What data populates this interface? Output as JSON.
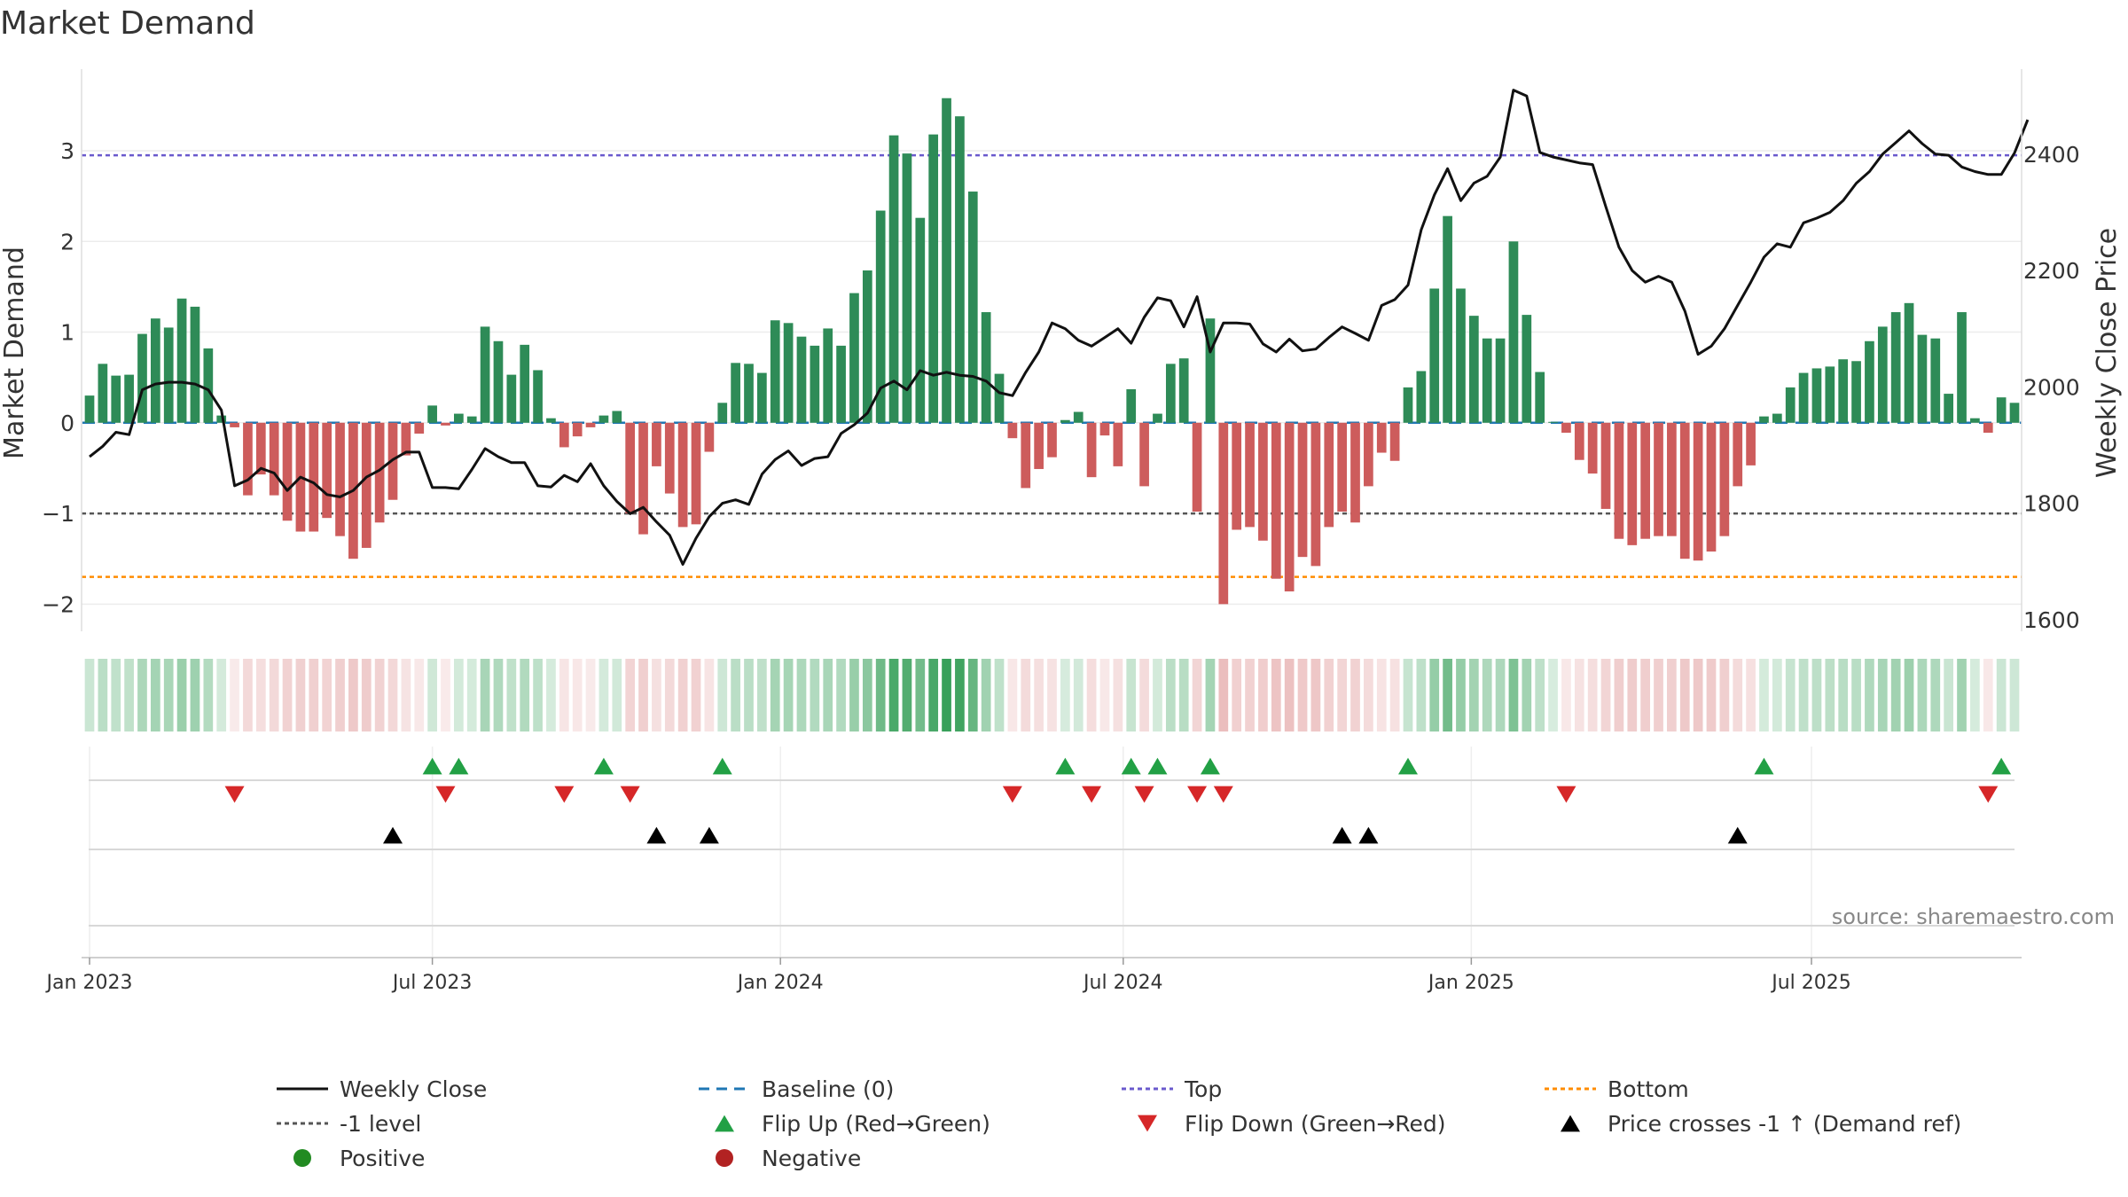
{
  "chart_data": {
    "type": "bar",
    "title": "Market Demand",
    "ylabel_left": "Market Demand",
    "ylabel_right": "Weekly Close Price",
    "source": "source: sharemaestro.com",
    "ylim_left": [
      -2.3,
      3.9
    ],
    "yticks_left": [
      {
        "v": 3,
        "label": "3"
      },
      {
        "v": 2,
        "label": "2"
      },
      {
        "v": 1,
        "label": "1"
      },
      {
        "v": 0,
        "label": "0"
      },
      {
        "v": -1,
        "label": "−1"
      },
      {
        "v": -2,
        "label": "−2"
      }
    ],
    "ylim_right": [
      1580,
      2546
    ],
    "yticks_right": [
      {
        "v": 2400,
        "label": "2400"
      },
      {
        "v": 2200,
        "label": "2200"
      },
      {
        "v": 2000,
        "label": "2000"
      },
      {
        "v": 1800,
        "label": "1800"
      },
      {
        "v": 1600,
        "label": "1600"
      }
    ],
    "xticks": [
      {
        "week": 0,
        "label": "Jan 2023"
      },
      {
        "week": 26,
        "label": "Jul 2023"
      },
      {
        "week": 52.4,
        "label": "Jan 2024"
      },
      {
        "week": 78.4,
        "label": "Jul 2024"
      },
      {
        "week": 104.8,
        "label": "Jan 2025"
      },
      {
        "week": 130.6,
        "label": "Jul 2025"
      }
    ],
    "levels": {
      "top": 2.95,
      "bottom": -1.7,
      "minus_one": -1,
      "baseline": 0
    },
    "series": [
      {
        "name": "Market Demand",
        "values": [
          0.3,
          0.65,
          0.52,
          0.53,
          0.98,
          1.15,
          1.05,
          1.37,
          1.28,
          0.82,
          0.08,
          -0.05,
          -0.8,
          -0.57,
          -0.8,
          -1.08,
          -1.2,
          -1.2,
          -1.05,
          -1.25,
          -1.5,
          -1.38,
          -1.1,
          -0.85,
          -0.36,
          -0.12,
          0.19,
          -0.03,
          0.1,
          0.07,
          1.06,
          0.9,
          0.53,
          0.86,
          0.58,
          0.05,
          -0.27,
          -0.15,
          -0.05,
          0.08,
          0.13,
          -1.0,
          -1.23,
          -0.48,
          -0.78,
          -1.15,
          -1.12,
          -0.32,
          0.22,
          0.66,
          0.65,
          0.55,
          1.13,
          1.1,
          0.95,
          0.85,
          1.04,
          0.85,
          1.43,
          1.68,
          2.34,
          3.17,
          2.97,
          2.26,
          3.18,
          3.58,
          3.38,
          2.55,
          1.22,
          0.54,
          -0.17,
          -0.72,
          -0.51,
          -0.38,
          0.03,
          0.12,
          -0.6,
          -0.14,
          -0.48,
          0.37,
          -0.7,
          0.1,
          0.65,
          0.71,
          -0.98,
          1.15,
          -2.0,
          -1.18,
          -1.15,
          -1.3,
          -1.72,
          -1.86,
          -1.48,
          -1.58,
          -1.15,
          -0.98,
          -1.1,
          -0.7,
          -0.33,
          -0.42,
          0.39,
          0.57,
          1.48,
          2.28,
          1.48,
          1.18,
          0.93,
          0.93,
          2.0,
          1.19,
          0.56,
          0.01,
          -0.11,
          -0.41,
          -0.56,
          -0.95,
          -1.28,
          -1.35,
          -1.28,
          -1.25,
          -1.25,
          -1.5,
          -1.52,
          -1.42,
          -1.25,
          -0.7,
          -0.47,
          0.07,
          0.1,
          0.39,
          0.55,
          0.6,
          0.62,
          0.7,
          0.68,
          0.9,
          1.06,
          1.22,
          1.32,
          0.97,
          0.93,
          0.32,
          1.22,
          0.05,
          -0.11,
          0.28,
          0.22
        ]
      },
      {
        "name": "Weekly Close",
        "values": [
          1880,
          1898,
          1922,
          1918,
          1995,
          2005,
          2008,
          2008,
          2005,
          1995,
          1960,
          1830,
          1840,
          1860,
          1852,
          1822,
          1845,
          1835,
          1815,
          1811,
          1822,
          1845,
          1857,
          1875,
          1888,
          1888,
          1827,
          1827,
          1825,
          1858,
          1894,
          1880,
          1870,
          1870,
          1830,
          1828,
          1848,
          1837,
          1868,
          1830,
          1803,
          1782,
          1793,
          1768,
          1745,
          1695,
          1740,
          1777,
          1800,
          1806,
          1798,
          1850,
          1875,
          1890,
          1865,
          1877,
          1880,
          1920,
          1935,
          1955,
          1998,
          2010,
          1995,
          2028,
          2020,
          2025,
          2020,
          2018,
          2010,
          1990,
          1985,
          2025,
          2060,
          2110,
          2100,
          2080,
          2070,
          2085,
          2100,
          2075,
          2120,
          2153,
          2148,
          2103,
          2155,
          2060,
          2110,
          2110,
          2108,
          2074,
          2060,
          2082,
          2062,
          2065,
          2085,
          2103,
          2092,
          2080,
          2140,
          2150,
          2175,
          2270,
          2330,
          2375,
          2320,
          2350,
          2362,
          2395,
          2510,
          2500,
          2403,
          2395,
          2390,
          2385,
          2382,
          2310,
          2240,
          2200,
          2180,
          2190,
          2180,
          2130,
          2056,
          2070,
          2100,
          2140,
          2180,
          2223,
          2246,
          2240,
          2282,
          2290,
          2300,
          2320,
          2350,
          2370,
          2400,
          2420,
          2440,
          2418,
          2400,
          2398,
          2378,
          2370,
          2365,
          2365,
          2402,
          2459
        ]
      }
    ],
    "legend": [
      {
        "label": "Weekly Close",
        "marker": "solid-line"
      },
      {
        "label": "Baseline (0)",
        "marker": "dashed-line"
      },
      {
        "label": "Top",
        "marker": "dotted-line"
      },
      {
        "label": "Bottom",
        "marker": "dotted-line"
      },
      {
        "label": "-1 level",
        "marker": "dotted-line"
      },
      {
        "label": "Flip Up (Red→Green)",
        "marker": "triangle-up"
      },
      {
        "label": "Flip Down (Green→Red)",
        "marker": "triangle-down"
      },
      {
        "label": "Price crosses -1 ↑ (Demand ref)",
        "marker": "triangle-up"
      },
      {
        "label": "Positive",
        "marker": "circle"
      },
      {
        "label": "Negative",
        "marker": "circle"
      }
    ]
  },
  "colors": {
    "positive": "#2e8b57",
    "negative": "#cd5c5c",
    "price_line": "#111111",
    "baseline": "#1f77b4",
    "top": "#6a5acd",
    "bottom": "#ff8c00",
    "minus_one": "#555555",
    "flip_up": "#22a045",
    "flip_down": "#d62728",
    "cross": "#000000",
    "positive_dot": "#228b22",
    "negative_dot": "#b22222"
  }
}
